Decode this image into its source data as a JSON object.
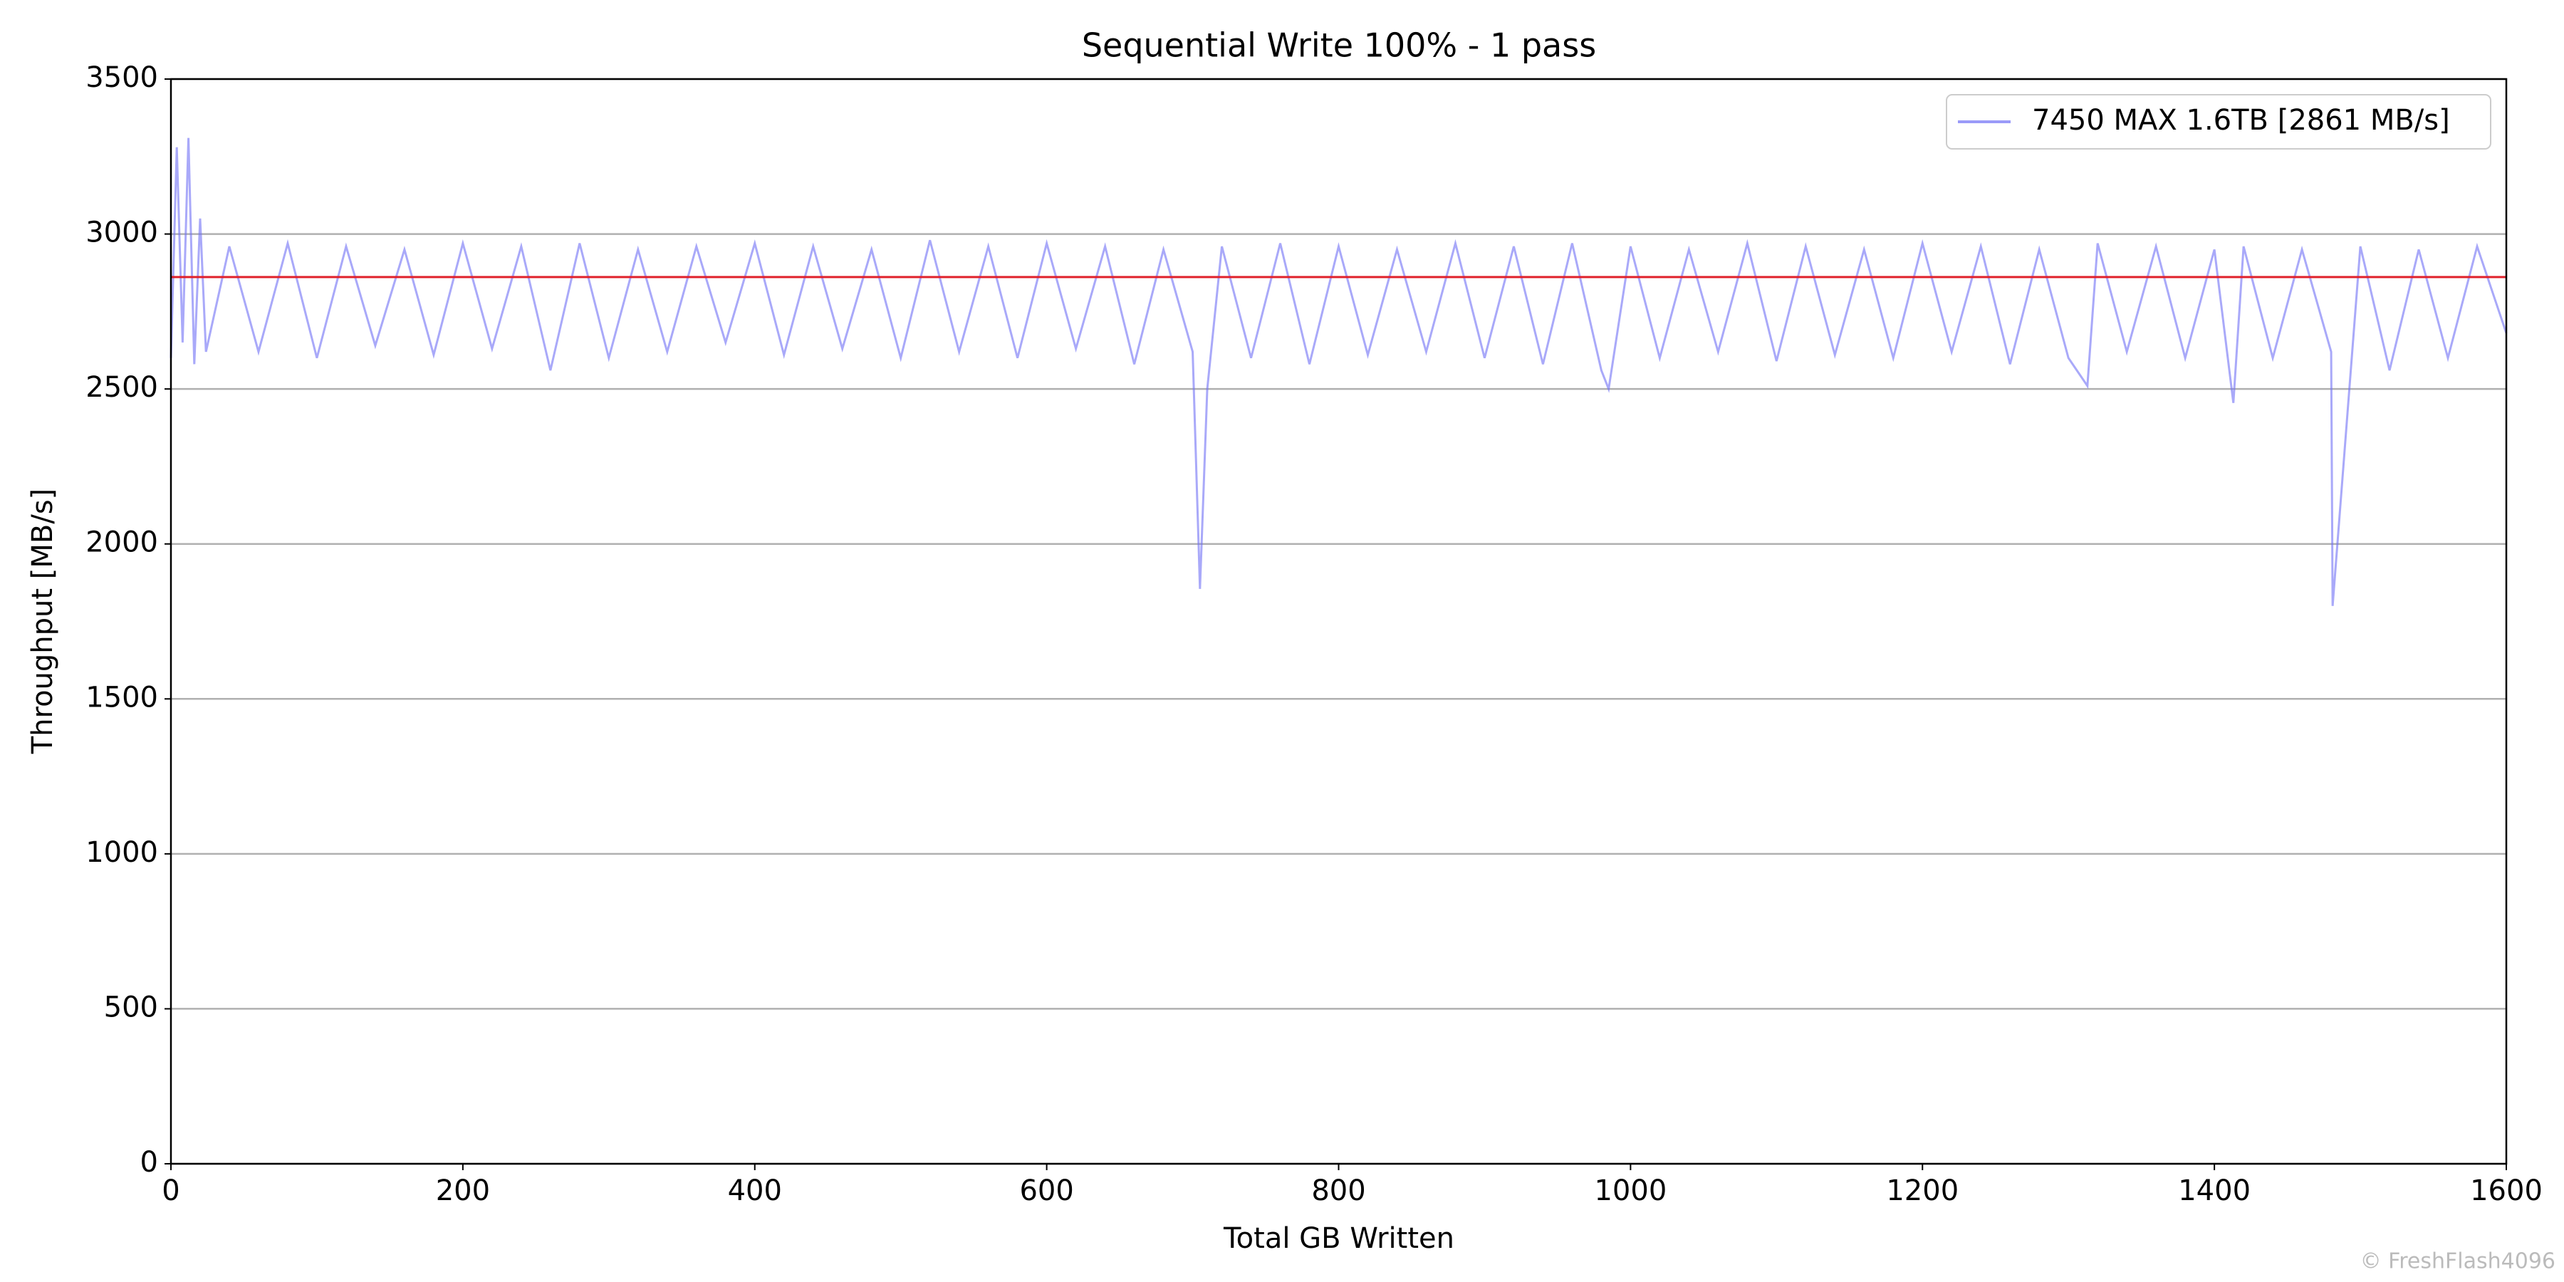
{
  "chart_data": {
    "type": "line",
    "title": "Sequential Write 100% - 1 pass",
    "x_label": "Total GB Written",
    "y_label": "Throughput [MB/s]",
    "watermark": "© FreshFlash4096",
    "x": [
      0,
      4,
      8,
      12,
      16,
      20,
      24,
      40,
      60,
      80,
      100,
      120,
      140,
      160,
      180,
      200,
      220,
      240,
      260,
      280,
      300,
      320,
      340,
      360,
      380,
      400,
      420,
      440,
      460,
      480,
      500,
      520,
      540,
      560,
      580,
      600,
      620,
      640,
      660,
      680,
      700,
      705,
      710,
      720,
      740,
      760,
      780,
      800,
      820,
      840,
      860,
      880,
      900,
      920,
      940,
      960,
      980,
      985,
      1000,
      1020,
      1040,
      1060,
      1080,
      1100,
      1120,
      1140,
      1160,
      1180,
      1200,
      1220,
      1240,
      1260,
      1280,
      1300,
      1313,
      1320,
      1340,
      1360,
      1380,
      1400,
      1413,
      1420,
      1440,
      1460,
      1480,
      1481,
      1500,
      1520,
      1540,
      1560,
      1580,
      1600
    ],
    "series": [
      {
        "name": "7450 MAX 1.6TB [2861 MB/s]",
        "color": "#6f6ff5",
        "values": [
          2600,
          3280,
          2650,
          3310,
          2580,
          3050,
          2620,
          2960,
          2620,
          2970,
          2600,
          2960,
          2640,
          2950,
          2610,
          2970,
          2630,
          2960,
          2560,
          2970,
          2600,
          2950,
          2620,
          2960,
          2650,
          2970,
          2610,
          2960,
          2630,
          2950,
          2600,
          2980,
          2620,
          2960,
          2600,
          2970,
          2630,
          2960,
          2580,
          2950,
          2620,
          1855,
          2500,
          2960,
          2600,
          2970,
          2580,
          2960,
          2610,
          2950,
          2620,
          2970,
          2600,
          2960,
          2580,
          2970,
          2560,
          2500,
          2960,
          2600,
          2950,
          2620,
          2970,
          2590,
          2960,
          2610,
          2950,
          2600,
          2970,
          2620,
          2960,
          2580,
          2950,
          2600,
          2510,
          2970,
          2620,
          2960,
          2600,
          2950,
          2455,
          2960,
          2600,
          2950,
          2620,
          1800,
          2960,
          2560,
          2950,
          2600,
          2960,
          2680
        ]
      }
    ],
    "average": {
      "value": 2861,
      "color": "#e0202a"
    },
    "xlim": [
      0,
      1600
    ],
    "xticks": [
      0,
      200,
      400,
      600,
      800,
      1000,
      1200,
      1400,
      1600
    ],
    "ylim": [
      0,
      3500
    ],
    "yticks": [
      0,
      500,
      1000,
      1500,
      2000,
      2500,
      3000,
      3500
    ],
    "grid": true,
    "legend": "upper right"
  }
}
